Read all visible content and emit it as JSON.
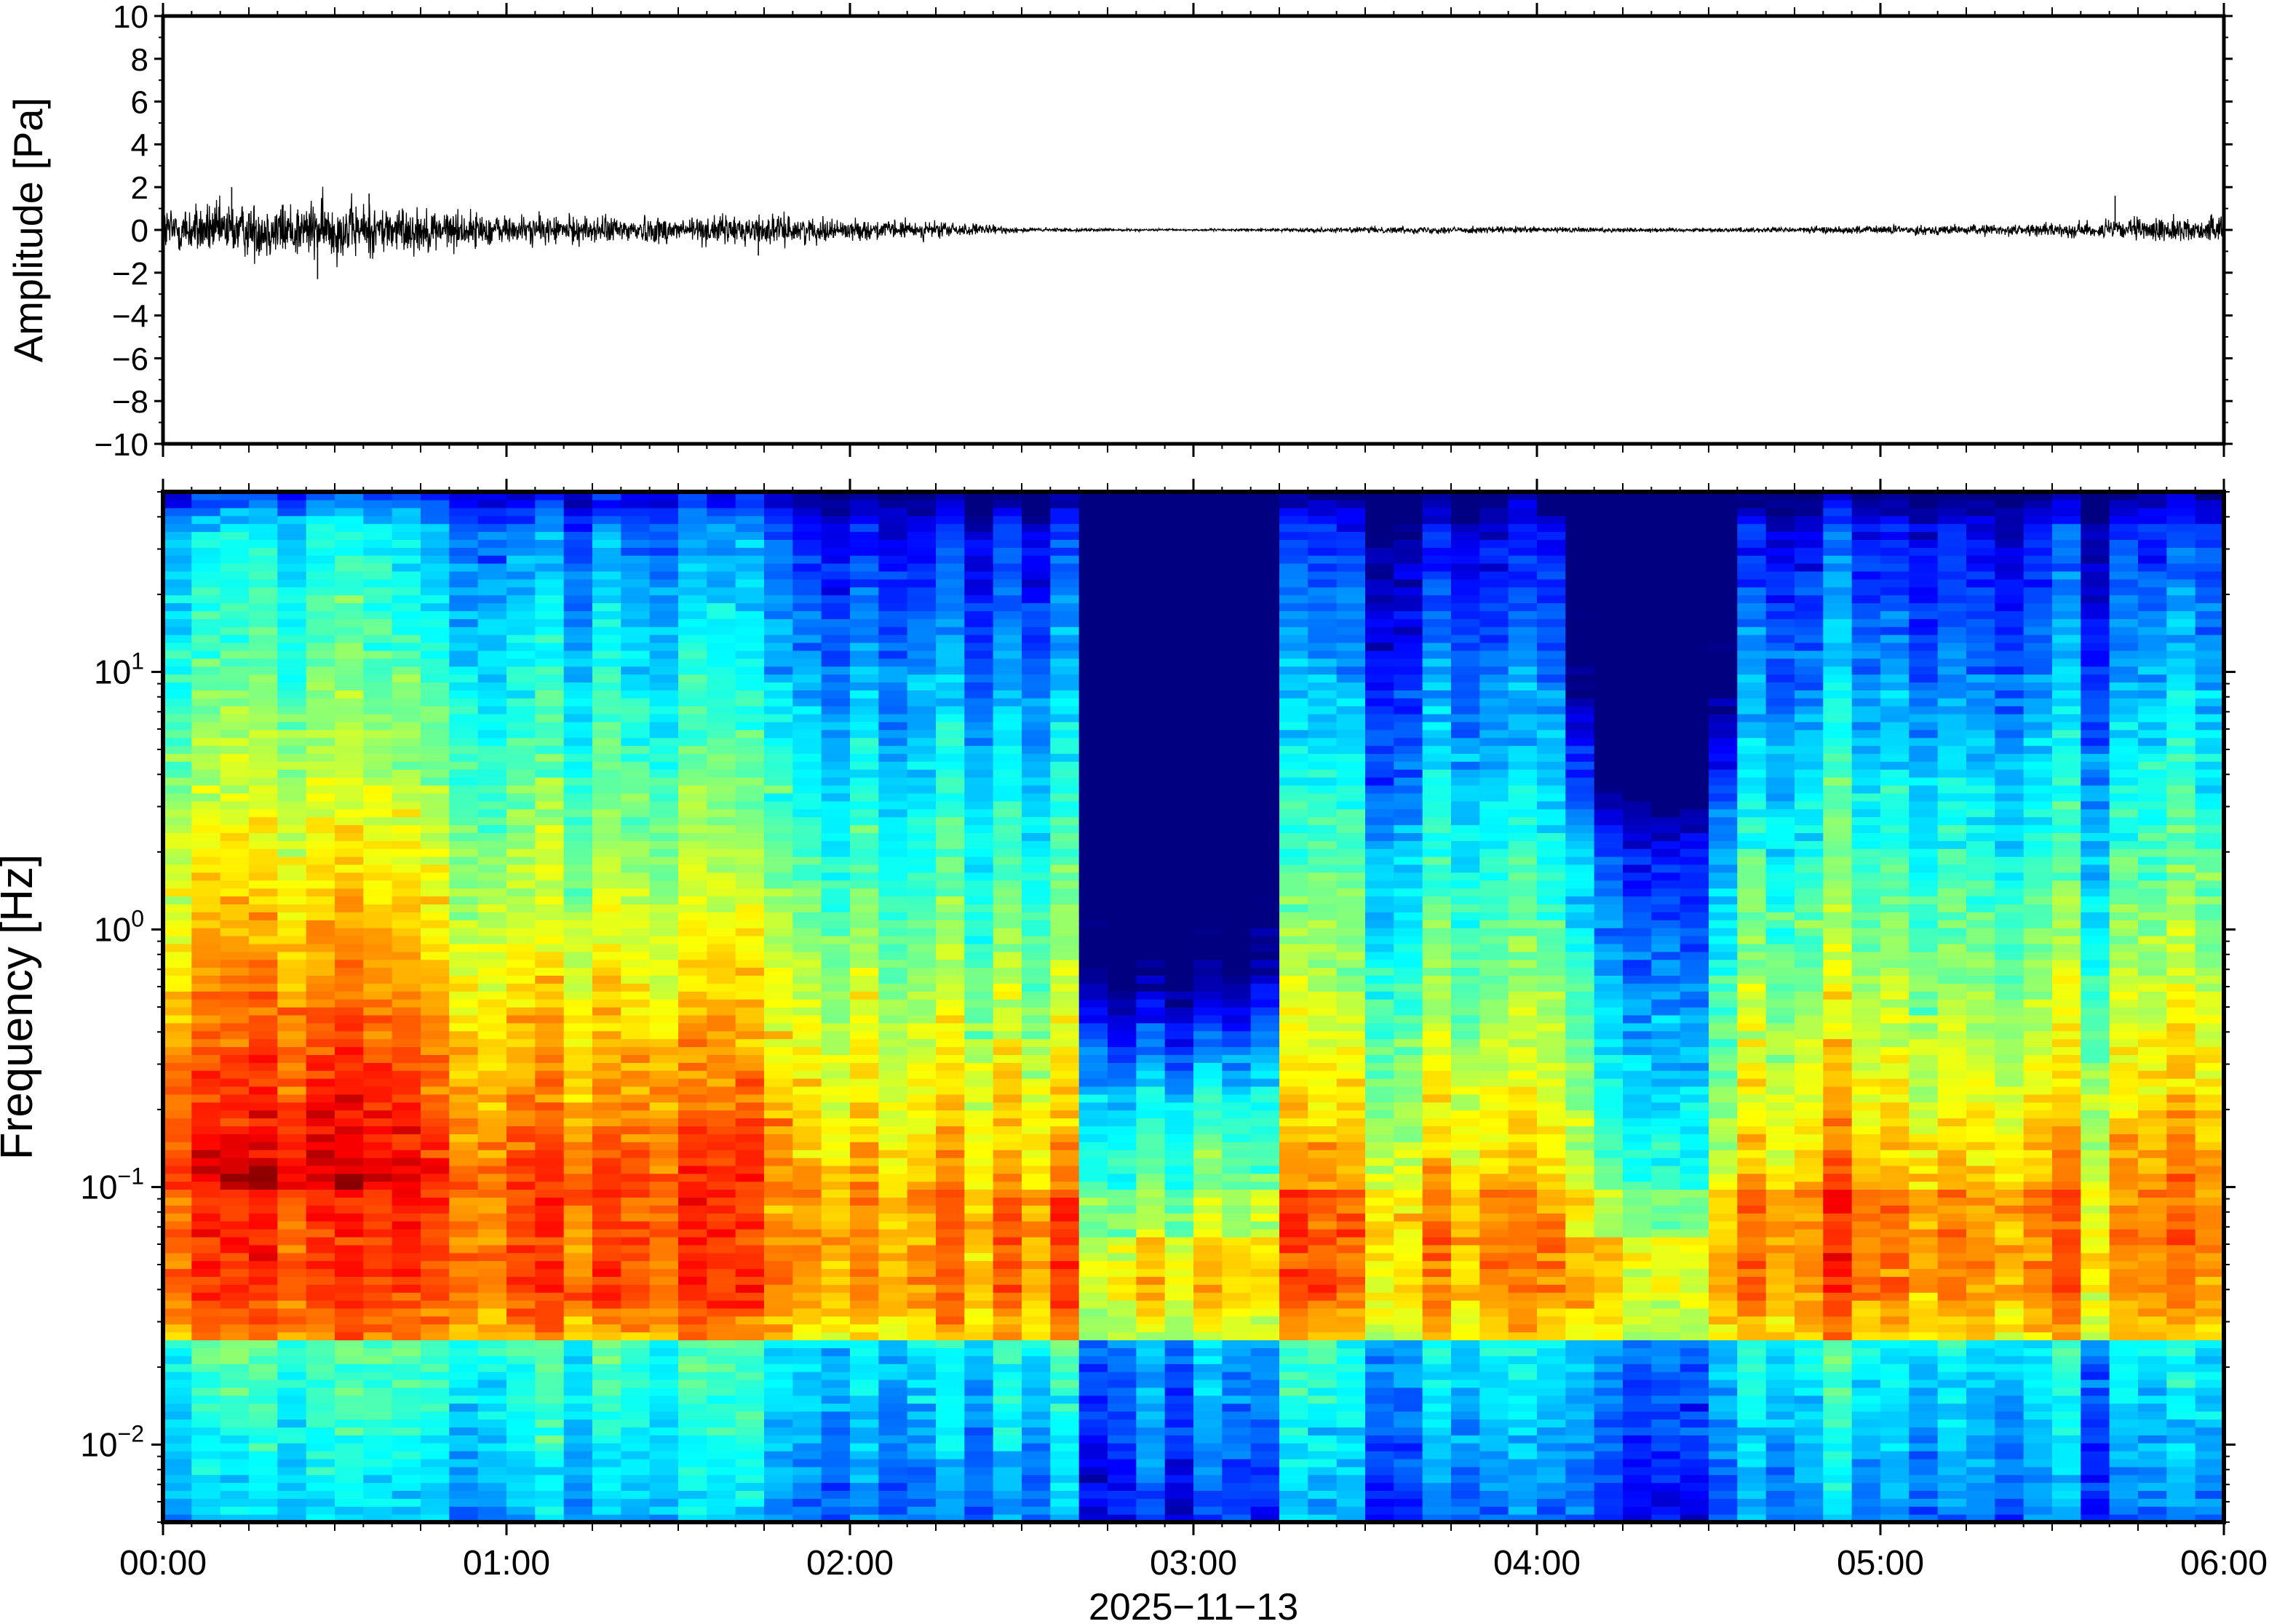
{
  "chart_data": [
    {
      "type": "line",
      "panel": "waveform",
      "ylabel": "Amplitude [Pa]",
      "ylim": [
        -10,
        10
      ],
      "yticks": [
        "10",
        "8",
        "6",
        "4",
        "2",
        "0",
        "−2",
        "−4",
        "−6",
        "−8",
        "−10"
      ],
      "x_range": [
        "00:00",
        "06:00"
      ],
      "envelope": {
        "description_units": "Pa",
        "x": [
          "00:00",
          "00:15",
          "00:30",
          "00:45",
          "01:00",
          "01:15",
          "01:30",
          "01:45",
          "02:00",
          "02:15",
          "02:30",
          "02:45",
          "03:00",
          "03:15",
          "03:30",
          "03:45",
          "04:00",
          "04:15",
          "04:30",
          "04:45",
          "05:00",
          "05:15",
          "05:30",
          "05:45",
          "06:00"
        ],
        "half_amplitude": [
          1.0,
          1.1,
          1.2,
          0.9,
          0.6,
          0.55,
          0.55,
          0.6,
          0.4,
          0.35,
          0.1,
          0.05,
          0.04,
          0.06,
          0.12,
          0.15,
          0.12,
          0.1,
          0.08,
          0.12,
          0.18,
          0.2,
          0.25,
          0.45,
          0.5
        ],
        "peaks": [
          {
            "x": "00:12",
            "y": 2.0
          },
          {
            "x": "00:27",
            "y": -2.3
          },
          {
            "x": "00:36",
            "y": 1.7
          },
          {
            "x": "01:44",
            "y": -1.2
          },
          {
            "x": "05:41",
            "y": 1.6
          }
        ]
      },
      "color": "#000000"
    },
    {
      "type": "heatmap",
      "panel": "spectrogram",
      "ylabel": "Frequency [Hz]",
      "xlabel": "2025−11−13",
      "yscale": "log",
      "ylim_hz": [
        0.005,
        50
      ],
      "yticks": [
        {
          "value": 0.01,
          "base": "10",
          "exp": "−2"
        },
        {
          "value": 0.1,
          "base": "10",
          "exp": "−1"
        },
        {
          "value": 1,
          "base": "10",
          "exp": "0"
        },
        {
          "value": 10,
          "base": "10",
          "exp": "1"
        }
      ],
      "xticks": [
        "00:00",
        "01:00",
        "02:00",
        "03:00",
        "04:00",
        "05:00",
        "06:00"
      ],
      "colormap": "jet",
      "quiet_intervals": [
        {
          "from": "02:38",
          "to": "03:17",
          "down_to_hz": 0.2
        },
        {
          "from": "04:05",
          "to": "04:35",
          "down_to_hz": 2.0
        }
      ],
      "colors": {
        "low": "#000080",
        "mid_low": "#1e90ff",
        "mid": "#7de3c6",
        "mid_high": "#f0e68c",
        "high": "#ef4b2f"
      }
    }
  ]
}
